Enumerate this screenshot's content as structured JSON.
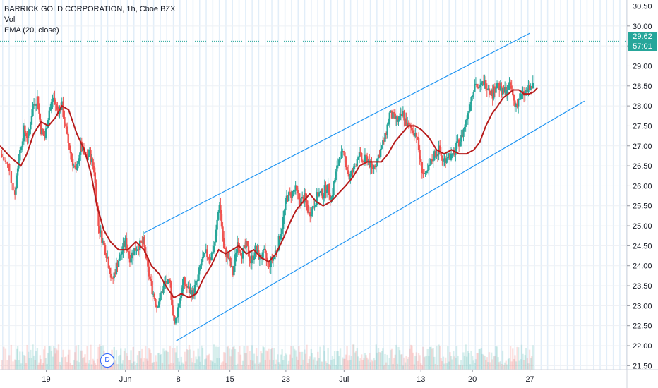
{
  "legend": {
    "title": "BARRICK GOLD CORPORATION, 1h, Cboe BZX",
    "vol": "Vol",
    "ema": "EMA (20, close)"
  },
  "price_label": {
    "price": "29.62",
    "countdown": "57:01"
  },
  "event_marker": "D",
  "colors": {
    "up": "#26a69a",
    "down": "#ef5350",
    "ema": "#b71c1c",
    "channel": "#2196f3",
    "price_line": "#26a69a",
    "grid_band": "#cfe3f5"
  },
  "chart_data": {
    "type": "candlestick",
    "y_ticks": [
      "30.50",
      "30.00",
      "29.50",
      "29.00",
      "28.50",
      "28.00",
      "27.50",
      "27.00",
      "26.50",
      "26.00",
      "25.50",
      "25.00",
      "24.50",
      "24.00",
      "23.50",
      "23.00",
      "22.50",
      "22.00",
      "21.50"
    ],
    "ylim": [
      21.4,
      30.65
    ],
    "x_ticks": [
      {
        "label": "19",
        "x": 6.2
      },
      {
        "label": "Jun",
        "x": 16.8
      },
      {
        "label": "8",
        "x": 23.9
      },
      {
        "label": "15",
        "x": 30.8
      },
      {
        "label": "23",
        "x": 38.3
      },
      {
        "label": "Jul",
        "x": 46.1
      },
      {
        "label": "13",
        "x": 56.4
      },
      {
        "label": "20",
        "x": 63.3
      },
      {
        "label": "27",
        "x": 71.0
      }
    ],
    "xlim": [
      0,
      84
    ],
    "price_line": 29.62,
    "ema": [
      [
        0,
        27.0
      ],
      [
        1.5,
        26.7
      ],
      [
        2.8,
        26.5
      ],
      [
        3.6,
        26.8
      ],
      [
        4.5,
        27.3
      ],
      [
        5.5,
        27.6
      ],
      [
        6.5,
        27.5
      ],
      [
        7.4,
        27.7
      ],
      [
        8.3,
        28.0
      ],
      [
        9.2,
        27.9
      ],
      [
        10.3,
        27.3
      ],
      [
        11.3,
        26.9
      ],
      [
        12.2,
        26.3
      ],
      [
        13.0,
        25.5
      ],
      [
        13.9,
        24.9
      ],
      [
        14.8,
        24.6
      ],
      [
        15.9,
        24.4
      ],
      [
        17.1,
        24.4
      ],
      [
        18.2,
        24.6
      ],
      [
        19.3,
        24.4
      ],
      [
        20.3,
        24.0
      ],
      [
        21.3,
        23.8
      ],
      [
        22.2,
        23.5
      ],
      [
        23.3,
        23.2
      ],
      [
        24.3,
        23.3
      ],
      [
        25.3,
        23.2
      ],
      [
        26.3,
        23.3
      ],
      [
        27.3,
        23.7
      ],
      [
        28.3,
        24.0
      ],
      [
        29.3,
        24.4
      ],
      [
        30.2,
        24.3
      ],
      [
        31.1,
        24.4
      ],
      [
        32.0,
        24.5
      ],
      [
        33.0,
        24.3
      ],
      [
        34.0,
        24.4
      ],
      [
        35.0,
        24.2
      ],
      [
        36.0,
        24.1
      ],
      [
        37.0,
        24.3
      ],
      [
        38.0,
        24.7
      ],
      [
        38.9,
        25.1
      ],
      [
        39.7,
        25.4
      ],
      [
        40.6,
        25.6
      ],
      [
        41.5,
        25.8
      ],
      [
        42.4,
        25.6
      ],
      [
        43.3,
        25.5
      ],
      [
        44.3,
        25.6
      ],
      [
        45.3,
        25.8
      ],
      [
        46.3,
        26.0
      ],
      [
        47.2,
        26.2
      ],
      [
        48.2,
        26.5
      ],
      [
        49.2,
        26.6
      ],
      [
        50.2,
        26.6
      ],
      [
        51.1,
        26.6
      ],
      [
        52.0,
        26.8
      ],
      [
        52.9,
        27.1
      ],
      [
        53.8,
        27.3
      ],
      [
        54.7,
        27.5
      ],
      [
        55.6,
        27.5
      ],
      [
        56.5,
        27.4
      ],
      [
        57.5,
        27.2
      ],
      [
        58.5,
        26.9
      ],
      [
        59.5,
        26.8
      ],
      [
        60.5,
        26.9
      ],
      [
        61.5,
        26.8
      ],
      [
        62.5,
        26.8
      ],
      [
        63.5,
        26.9
      ],
      [
        64.3,
        27.1
      ],
      [
        65.1,
        27.5
      ],
      [
        65.9,
        27.8
      ],
      [
        66.7,
        28.0
      ],
      [
        67.4,
        28.2
      ],
      [
        68.1,
        28.3
      ],
      [
        68.8,
        28.4
      ],
      [
        69.5,
        28.4
      ],
      [
        70.2,
        28.3
      ],
      [
        70.9,
        28.3
      ],
      [
        71.5,
        28.35
      ],
      [
        72.0,
        28.45
      ]
    ],
    "channel_upper": [
      [
        19.3,
        24.82
      ],
      [
        71.0,
        29.82
      ]
    ],
    "channel_lower": [
      [
        23.6,
        22.12
      ],
      [
        78.3,
        28.12
      ]
    ],
    "price_path": [
      [
        0,
        26.8
      ],
      [
        1.0,
        26.5
      ],
      [
        2.0,
        25.8
      ],
      [
        2.5,
        26.7
      ],
      [
        3.2,
        27.4
      ],
      [
        3.8,
        27.2
      ],
      [
        4.4,
        28.0
      ],
      [
        5.0,
        28.2
      ],
      [
        5.5,
        27.4
      ],
      [
        6.0,
        27.2
      ],
      [
        6.6,
        27.9
      ],
      [
        7.2,
        28.2
      ],
      [
        7.7,
        27.9
      ],
      [
        8.3,
        28.0
      ],
      [
        9.0,
        27.2
      ],
      [
        9.6,
        26.7
      ],
      [
        10.2,
        26.3
      ],
      [
        10.8,
        27.0
      ],
      [
        11.4,
        26.7
      ],
      [
        12.0,
        26.8
      ],
      [
        12.6,
        26.4
      ],
      [
        13.2,
        25.0
      ],
      [
        13.8,
        24.6
      ],
      [
        14.4,
        24.2
      ],
      [
        15.0,
        23.6
      ],
      [
        15.6,
        24.0
      ],
      [
        16.2,
        24.3
      ],
      [
        16.8,
        24.6
      ],
      [
        17.4,
        24.2
      ],
      [
        18.0,
        24.4
      ],
      [
        18.6,
        24.5
      ],
      [
        19.2,
        24.6
      ],
      [
        19.8,
        23.9
      ],
      [
        20.4,
        23.4
      ],
      [
        21.0,
        23.0
      ],
      [
        21.6,
        23.3
      ],
      [
        22.2,
        23.6
      ],
      [
        22.8,
        23.5
      ],
      [
        23.4,
        22.5
      ],
      [
        24.0,
        23.1
      ],
      [
        24.6,
        23.6
      ],
      [
        25.2,
        23.4
      ],
      [
        25.8,
        23.3
      ],
      [
        26.4,
        23.6
      ],
      [
        27.0,
        24.1
      ],
      [
        27.6,
        24.3
      ],
      [
        28.2,
        24.2
      ],
      [
        28.8,
        24.6
      ],
      [
        29.4,
        25.6
      ],
      [
        30.0,
        24.4
      ],
      [
        30.6,
        24.2
      ],
      [
        31.2,
        23.8
      ],
      [
        31.8,
        24.6
      ],
      [
        32.4,
        24.3
      ],
      [
        33.0,
        24.5
      ],
      [
        33.6,
        24.1
      ],
      [
        34.2,
        24.4
      ],
      [
        34.8,
        24.2
      ],
      [
        35.4,
        24.3
      ],
      [
        36.0,
        24.0
      ],
      [
        36.6,
        24.2
      ],
      [
        37.2,
        24.5
      ],
      [
        37.8,
        25.0
      ],
      [
        38.4,
        25.7
      ],
      [
        39.0,
        25.8
      ],
      [
        39.6,
        25.9
      ],
      [
        40.2,
        25.6
      ],
      [
        40.8,
        25.7
      ],
      [
        41.4,
        25.3
      ],
      [
        42.0,
        25.5
      ],
      [
        42.6,
        25.8
      ],
      [
        43.2,
        25.8
      ],
      [
        43.8,
        26.0
      ],
      [
        44.4,
        25.7
      ],
      [
        45.0,
        26.3
      ],
      [
        45.6,
        26.8
      ],
      [
        46.2,
        26.7
      ],
      [
        46.8,
        26.2
      ],
      [
        47.4,
        26.4
      ],
      [
        48.0,
        26.8
      ],
      [
        48.6,
        26.6
      ],
      [
        49.2,
        26.7
      ],
      [
        49.8,
        26.4
      ],
      [
        50.4,
        26.6
      ],
      [
        51.0,
        26.9
      ],
      [
        51.6,
        27.2
      ],
      [
        52.2,
        27.8
      ],
      [
        52.8,
        27.7
      ],
      [
        53.4,
        27.6
      ],
      [
        54.0,
        27.8
      ],
      [
        54.6,
        27.5
      ],
      [
        55.2,
        27.4
      ],
      [
        55.8,
        27.3
      ],
      [
        56.4,
        26.5
      ],
      [
        57.0,
        26.2
      ],
      [
        57.6,
        26.5
      ],
      [
        58.2,
        26.8
      ],
      [
        58.8,
        26.9
      ],
      [
        59.4,
        26.6
      ],
      [
        60.0,
        26.8
      ],
      [
        60.6,
        26.7
      ],
      [
        61.2,
        27.0
      ],
      [
        61.8,
        27.2
      ],
      [
        62.4,
        27.6
      ],
      [
        63.0,
        28.1
      ],
      [
        63.6,
        28.6
      ],
      [
        64.2,
        28.4
      ],
      [
        64.8,
        28.6
      ],
      [
        65.4,
        28.5
      ],
      [
        66.0,
        28.3
      ],
      [
        66.6,
        28.6
      ],
      [
        67.2,
        28.3
      ],
      [
        67.8,
        28.4
      ],
      [
        68.4,
        28.5
      ],
      [
        69.0,
        28.0
      ],
      [
        69.6,
        28.2
      ],
      [
        70.2,
        28.3
      ],
      [
        70.8,
        28.4
      ],
      [
        71.4,
        28.5
      ]
    ]
  }
}
